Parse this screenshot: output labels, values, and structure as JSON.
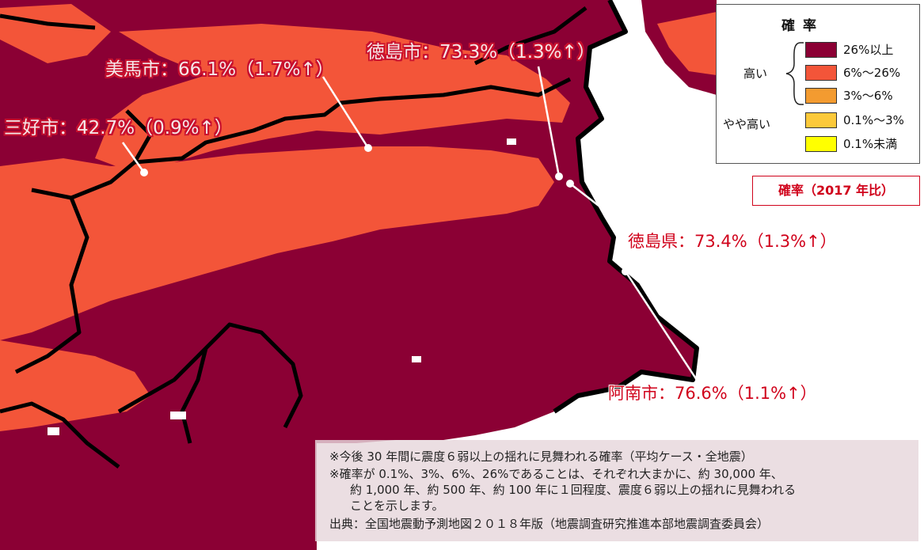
{
  "legend": {
    "title": "確 率",
    "items": [
      {
        "label": "26%以上",
        "color": "#8b0034"
      },
      {
        "label": "6%〜26%",
        "color": "#f35539"
      },
      {
        "label": "3%〜6%",
        "color": "#f39b30"
      },
      {
        "label": "0.1%〜3%",
        "color": "#fbc93a"
      },
      {
        "label": "0.1%未満",
        "color": "#ffff00"
      }
    ],
    "group_high": "高い",
    "group_mid": "やや高い"
  },
  "badge": "確率（2017 年比）",
  "labels": {
    "mima": "美馬市：66.1%（1.7%↑）",
    "tokushima_city": "徳島市：73.3%（1.3%↑）",
    "miyoshi": "三好市：42.7%（0.9%↑）",
    "prefecture": "徳島県：73.4%（1.3%↑）",
    "anan": "阿南市：76.6%（1.1%↑）"
  },
  "notes": {
    "line1": "※今後 30 年間に震度６弱以上の揺れに見舞われる確率（平均ケース・全地震）",
    "line2": "※確率が 0.1%、3%、6%、26%であることは、それぞれ大まかに、約 30,000 年、",
    "line3": "約 1,000 年、約 500 年、約 100 年に１回程度、震度６弱以上の揺れに見舞われる",
    "line4": "ことを示します。",
    "source": "出典：全国地震動予測地図２０１８年版（地震調査研究推進本部地震調査委員会）"
  },
  "colors": {
    "high": "#8b0034",
    "mid": "#f35539",
    "sea": "#ffffff",
    "border": "#000000",
    "label_accent": "#d0021b"
  }
}
